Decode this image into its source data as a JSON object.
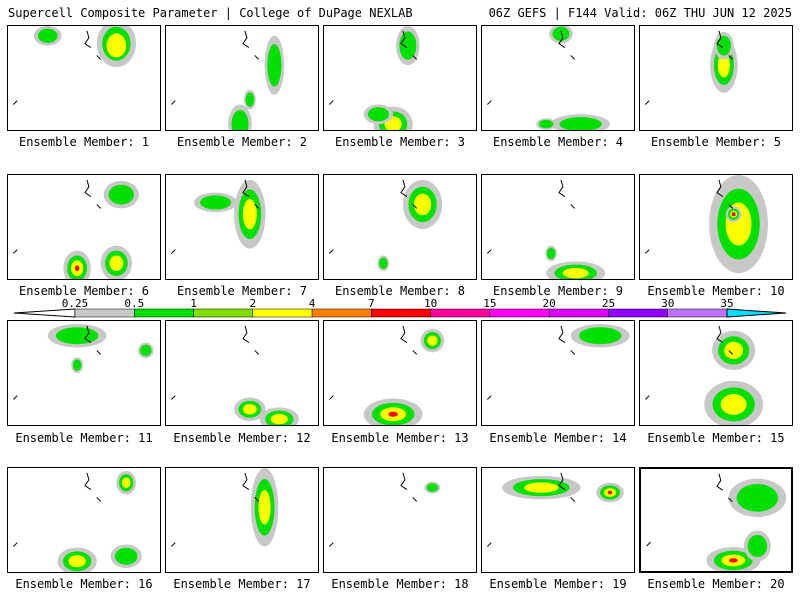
{
  "header": {
    "title_left": "Supercell Composite Parameter | College of DuPage NEXLAB",
    "title_right": "06Z GEFS | F144 Valid: 06Z THU JUN 12 2025"
  },
  "colorbar": {
    "ticks": [
      "0.25",
      "0.5",
      "1",
      "2",
      "4",
      "7",
      "10",
      "15",
      "20",
      "25",
      "30",
      "35"
    ],
    "colors": [
      "#c8c8c8",
      "#00e000",
      "#80e000",
      "#ffff00",
      "#ff8000",
      "#ff0000",
      "#ff00a0",
      "#ff00ff",
      "#e000ff",
      "#9000ff",
      "#c070ff",
      "#00e0ff"
    ]
  },
  "panels": [
    {
      "label": "Ensemble Member: 1"
    },
    {
      "label": "Ensemble Member: 2"
    },
    {
      "label": "Ensemble Member: 3"
    },
    {
      "label": "Ensemble Member: 4"
    },
    {
      "label": "Ensemble Member: 5"
    },
    {
      "label": "Ensemble Member: 6"
    },
    {
      "label": "Ensemble Member: 7"
    },
    {
      "label": "Ensemble Member: 8"
    },
    {
      "label": "Ensemble Member: 9"
    },
    {
      "label": "Ensemble Member: 10"
    },
    {
      "label": "Ensemble Member: 11"
    },
    {
      "label": "Ensemble Member: 12"
    },
    {
      "label": "Ensemble Member: 13"
    },
    {
      "label": "Ensemble Member: 14"
    },
    {
      "label": "Ensemble Member: 15"
    },
    {
      "label": "Ensemble Member: 16"
    },
    {
      "label": "Ensemble Member: 17"
    },
    {
      "label": "Ensemble Member: 18"
    },
    {
      "label": "Ensemble Member: 19"
    },
    {
      "label": "Ensemble Member: 20",
      "selected": true
    }
  ]
}
